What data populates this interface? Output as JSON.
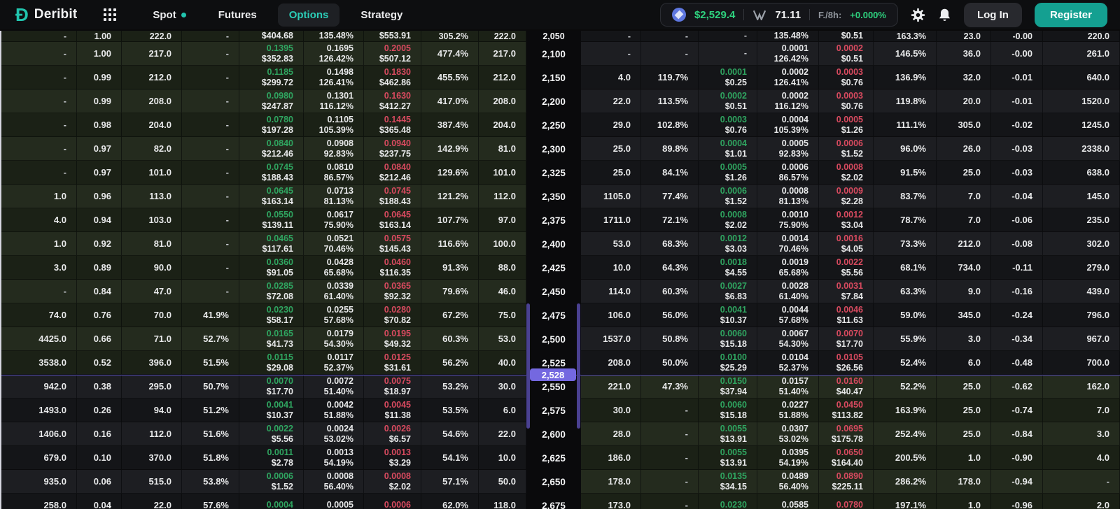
{
  "navbar": {
    "brand": "Deribit",
    "menu": [
      {
        "label": "Spot",
        "has_dot": true
      },
      {
        "label": "Futures"
      },
      {
        "label": "Options",
        "active": true
      },
      {
        "label": "Strategy"
      }
    ],
    "ticker": {
      "price": "$2,529.4",
      "dvol": "71.11",
      "funding_label": "F./8h:",
      "funding_value": "+0.000%"
    },
    "login_label": "Log In",
    "register_label": "Register"
  },
  "colors": {
    "accent_teal": "#21c4ae",
    "bid_green": "#2fa560",
    "ask_red": "#d84a5f",
    "price_green": "#2ed37f",
    "purple_marker": "#7468e0",
    "itm_row_green": "#242b1e"
  },
  "chain": {
    "current_price": "2,528",
    "rows": [
      {
        "strike": "2,050",
        "partial": "top",
        "itm": "call",
        "call": {
          "open": "-",
          "delta": "1.00",
          "bid_size": "222.0",
          "bid_iv": "-",
          "bid": [
            "",
            "$404.68"
          ],
          "mark": [
            "",
            "135.48%"
          ],
          "ask": [
            "",
            "$553.91"
          ],
          "ask_iv": "305.2%",
          "ask_size": "222.0"
        },
        "put": {
          "bid_size": "-",
          "bid_iv": "-",
          "bid": [
            "-",
            ""
          ],
          "mark": [
            "",
            "135.48%"
          ],
          "ask": [
            "",
            "$0.51"
          ],
          "ask_iv": "163.3%",
          "ask_size": "23.0",
          "delta": "-0.00",
          "open": "220.0"
        }
      },
      {
        "strike": "2,100",
        "itm": "call",
        "call": {
          "open": "-",
          "delta": "1.00",
          "bid_size": "217.0",
          "bid_iv": "-",
          "bid": [
            "0.1395",
            "$352.83"
          ],
          "mark": [
            "0.1695",
            "126.42%"
          ],
          "ask": [
            "0.2005",
            "$507.12"
          ],
          "ask_iv": "477.4%",
          "ask_size": "217.0"
        },
        "put": {
          "bid_size": "-",
          "bid_iv": "-",
          "bid": [
            "-",
            ""
          ],
          "mark": [
            "0.0001",
            "126.42%"
          ],
          "ask": [
            "0.0002",
            "$0.51"
          ],
          "ask_iv": "146.5%",
          "ask_size": "36.0",
          "delta": "-0.00",
          "open": "261.0"
        }
      },
      {
        "strike": "2,150",
        "itm": "call",
        "call": {
          "open": "-",
          "delta": "0.99",
          "bid_size": "212.0",
          "bid_iv": "-",
          "bid": [
            "0.1185",
            "$299.72"
          ],
          "mark": [
            "0.1498",
            "126.41%"
          ],
          "ask": [
            "0.1830",
            "$462.86"
          ],
          "ask_iv": "455.5%",
          "ask_size": "212.0"
        },
        "put": {
          "bid_size": "4.0",
          "bid_iv": "119.7%",
          "bid": [
            "0.0001",
            "$0.25"
          ],
          "mark": [
            "0.0002",
            "126.41%"
          ],
          "ask": [
            "0.0003",
            "$0.76"
          ],
          "ask_iv": "136.9%",
          "ask_size": "32.0",
          "delta": "-0.01",
          "open": "640.0"
        }
      },
      {
        "strike": "2,200",
        "itm": "call",
        "call": {
          "open": "-",
          "delta": "0.99",
          "bid_size": "208.0",
          "bid_iv": "-",
          "bid": [
            "0.0980",
            "$247.87"
          ],
          "mark": [
            "0.1301",
            "116.12%"
          ],
          "ask": [
            "0.1630",
            "$412.27"
          ],
          "ask_iv": "417.0%",
          "ask_size": "208.0"
        },
        "put": {
          "bid_size": "22.0",
          "bid_iv": "113.5%",
          "bid": [
            "0.0002",
            "$0.51"
          ],
          "mark": [
            "0.0002",
            "116.12%"
          ],
          "ask": [
            "0.0003",
            "$0.76"
          ],
          "ask_iv": "119.8%",
          "ask_size": "20.0",
          "delta": "-0.01",
          "open": "1520.0"
        }
      },
      {
        "strike": "2,250",
        "itm": "call",
        "call": {
          "open": "-",
          "delta": "0.98",
          "bid_size": "204.0",
          "bid_iv": "-",
          "bid": [
            "0.0780",
            "$197.28"
          ],
          "mark": [
            "0.1105",
            "105.39%"
          ],
          "ask": [
            "0.1445",
            "$365.48"
          ],
          "ask_iv": "387.4%",
          "ask_size": "204.0"
        },
        "put": {
          "bid_size": "29.0",
          "bid_iv": "102.8%",
          "bid": [
            "0.0003",
            "$0.76"
          ],
          "mark": [
            "0.0004",
            "105.39%"
          ],
          "ask": [
            "0.0005",
            "$1.26"
          ],
          "ask_iv": "111.1%",
          "ask_size": "305.0",
          "delta": "-0.02",
          "open": "1245.0"
        }
      },
      {
        "strike": "2,300",
        "itm": "call",
        "call": {
          "open": "-",
          "delta": "0.97",
          "bid_size": "82.0",
          "bid_iv": "-",
          "bid": [
            "0.0840",
            "$212.46"
          ],
          "mark": [
            "0.0908",
            "92.83%"
          ],
          "ask": [
            "0.0940",
            "$237.75"
          ],
          "ask_iv": "142.9%",
          "ask_size": "81.0"
        },
        "put": {
          "bid_size": "25.0",
          "bid_iv": "89.8%",
          "bid": [
            "0.0004",
            "$1.01"
          ],
          "mark": [
            "0.0005",
            "92.83%"
          ],
          "ask": [
            "0.0006",
            "$1.52"
          ],
          "ask_iv": "96.0%",
          "ask_size": "26.0",
          "delta": "-0.03",
          "open": "2338.0"
        }
      },
      {
        "strike": "2,325",
        "itm": "call",
        "call": {
          "open": "-",
          "delta": "0.97",
          "bid_size": "101.0",
          "bid_iv": "-",
          "bid": [
            "0.0745",
            "$188.43"
          ],
          "mark": [
            "0.0810",
            "86.57%"
          ],
          "ask": [
            "0.0840",
            "$212.46"
          ],
          "ask_iv": "129.6%",
          "ask_size": "101.0"
        },
        "put": {
          "bid_size": "25.0",
          "bid_iv": "84.1%",
          "bid": [
            "0.0005",
            "$1.26"
          ],
          "mark": [
            "0.0006",
            "86.57%"
          ],
          "ask": [
            "0.0008",
            "$2.02"
          ],
          "ask_iv": "91.5%",
          "ask_size": "25.0",
          "delta": "-0.03",
          "open": "638.0"
        }
      },
      {
        "strike": "2,350",
        "itm": "call",
        "call": {
          "open": "1.0",
          "delta": "0.96",
          "bid_size": "113.0",
          "bid_iv": "-",
          "bid": [
            "0.0645",
            "$163.14"
          ],
          "mark": [
            "0.0713",
            "81.13%"
          ],
          "ask": [
            "0.0745",
            "$188.43"
          ],
          "ask_iv": "121.2%",
          "ask_size": "112.0"
        },
        "put": {
          "bid_size": "1105.0",
          "bid_iv": "77.4%",
          "bid": [
            "0.0006",
            "$1.52"
          ],
          "mark": [
            "0.0008",
            "81.13%"
          ],
          "ask": [
            "0.0009",
            "$2.28"
          ],
          "ask_iv": "83.7%",
          "ask_size": "7.0",
          "delta": "-0.04",
          "open": "145.0"
        }
      },
      {
        "strike": "2,375",
        "itm": "call",
        "call": {
          "open": "4.0",
          "delta": "0.94",
          "bid_size": "103.0",
          "bid_iv": "-",
          "bid": [
            "0.0550",
            "$139.11"
          ],
          "mark": [
            "0.0617",
            "75.90%"
          ],
          "ask": [
            "0.0645",
            "$163.14"
          ],
          "ask_iv": "107.7%",
          "ask_size": "97.0"
        },
        "put": {
          "bid_size": "1711.0",
          "bid_iv": "72.1%",
          "bid": [
            "0.0008",
            "$2.02"
          ],
          "mark": [
            "0.0010",
            "75.90%"
          ],
          "ask": [
            "0.0012",
            "$3.04"
          ],
          "ask_iv": "78.7%",
          "ask_size": "7.0",
          "delta": "-0.06",
          "open": "235.0"
        }
      },
      {
        "strike": "2,400",
        "itm": "call",
        "call": {
          "open": "1.0",
          "delta": "0.92",
          "bid_size": "81.0",
          "bid_iv": "-",
          "bid": [
            "0.0465",
            "$117.61"
          ],
          "mark": [
            "0.0521",
            "70.46%"
          ],
          "ask": [
            "0.0575",
            "$145.43"
          ],
          "ask_iv": "116.6%",
          "ask_size": "100.0"
        },
        "put": {
          "bid_size": "53.0",
          "bid_iv": "68.3%",
          "bid": [
            "0.0012",
            "$3.03"
          ],
          "mark": [
            "0.0014",
            "70.46%"
          ],
          "ask": [
            "0.0016",
            "$4.05"
          ],
          "ask_iv": "73.3%",
          "ask_size": "212.0",
          "delta": "-0.08",
          "open": "302.0"
        }
      },
      {
        "strike": "2,425",
        "itm": "call",
        "call": {
          "open": "3.0",
          "delta": "0.89",
          "bid_size": "90.0",
          "bid_iv": "-",
          "bid": [
            "0.0360",
            "$91.05"
          ],
          "mark": [
            "0.0428",
            "65.68%"
          ],
          "ask": [
            "0.0460",
            "$116.35"
          ],
          "ask_iv": "91.3%",
          "ask_size": "88.0"
        },
        "put": {
          "bid_size": "10.0",
          "bid_iv": "64.3%",
          "bid": [
            "0.0018",
            "$4.55"
          ],
          "mark": [
            "0.0019",
            "65.68%"
          ],
          "ask": [
            "0.0022",
            "$5.56"
          ],
          "ask_iv": "68.1%",
          "ask_size": "734.0",
          "delta": "-0.11",
          "open": "279.0"
        }
      },
      {
        "strike": "2,450",
        "itm": "call",
        "call": {
          "open": "-",
          "delta": "0.84",
          "bid_size": "47.0",
          "bid_iv": "-",
          "bid": [
            "0.0285",
            "$72.08"
          ],
          "mark": [
            "0.0339",
            "61.40%"
          ],
          "ask": [
            "0.0365",
            "$92.32"
          ],
          "ask_iv": "79.6%",
          "ask_size": "46.0"
        },
        "put": {
          "bid_size": "114.0",
          "bid_iv": "60.3%",
          "bid": [
            "0.0027",
            "$6.83"
          ],
          "mark": [
            "0.0028",
            "61.40%"
          ],
          "ask": [
            "0.0031",
            "$7.84"
          ],
          "ask_iv": "63.3%",
          "ask_size": "9.0",
          "delta": "-0.16",
          "open": "439.0"
        }
      },
      {
        "strike": "2,475",
        "itm": "call",
        "call": {
          "open": "74.0",
          "delta": "0.76",
          "bid_size": "70.0",
          "bid_iv": "41.9%",
          "bid": [
            "0.0230",
            "$58.17"
          ],
          "mark": [
            "0.0255",
            "57.68%"
          ],
          "ask": [
            "0.0280",
            "$70.82"
          ],
          "ask_iv": "67.2%",
          "ask_size": "75.0"
        },
        "put": {
          "bid_size": "106.0",
          "bid_iv": "56.0%",
          "bid": [
            "0.0041",
            "$10.37"
          ],
          "mark": [
            "0.0044",
            "57.68%"
          ],
          "ask": [
            "0.0046",
            "$11.63"
          ],
          "ask_iv": "59.0%",
          "ask_size": "345.0",
          "delta": "-0.24",
          "open": "796.0"
        }
      },
      {
        "strike": "2,500",
        "itm": "call",
        "call": {
          "open": "4425.0",
          "delta": "0.66",
          "bid_size": "71.0",
          "bid_iv": "52.7%",
          "bid": [
            "0.0165",
            "$41.73"
          ],
          "mark": [
            "0.0179",
            "54.30%"
          ],
          "ask": [
            "0.0195",
            "$49.32"
          ],
          "ask_iv": "60.3%",
          "ask_size": "53.0"
        },
        "put": {
          "bid_size": "1537.0",
          "bid_iv": "50.8%",
          "bid": [
            "0.0060",
            "$15.18"
          ],
          "mark": [
            "0.0067",
            "54.30%"
          ],
          "ask": [
            "0.0070",
            "$17.70"
          ],
          "ask_iv": "55.9%",
          "ask_size": "3.0",
          "delta": "-0.34",
          "open": "967.0"
        }
      },
      {
        "strike": "2,525",
        "itm": "call",
        "call": {
          "open": "3538.0",
          "delta": "0.52",
          "bid_size": "396.0",
          "bid_iv": "51.5%",
          "bid": [
            "0.0115",
            "$29.08"
          ],
          "mark": [
            "0.0117",
            "52.37%"
          ],
          "ask": [
            "0.0125",
            "$31.61"
          ],
          "ask_iv": "56.2%",
          "ask_size": "40.0"
        },
        "put": {
          "bid_size": "208.0",
          "bid_iv": "50.0%",
          "bid": [
            "0.0100",
            "$25.29"
          ],
          "mark": [
            "0.0104",
            "52.37%"
          ],
          "ask": [
            "0.0105",
            "$26.56"
          ],
          "ask_iv": "52.4%",
          "ask_size": "6.0",
          "delta": "-0.48",
          "open": "700.0"
        }
      },
      {
        "strike": "2,550",
        "itm": "put",
        "call": {
          "open": "942.0",
          "delta": "0.38",
          "bid_size": "295.0",
          "bid_iv": "50.7%",
          "bid": [
            "0.0070",
            "$17.70"
          ],
          "mark": [
            "0.0072",
            "51.40%"
          ],
          "ask": [
            "0.0075",
            "$18.97"
          ],
          "ask_iv": "53.2%",
          "ask_size": "30.0"
        },
        "put": {
          "bid_size": "221.0",
          "bid_iv": "47.3%",
          "bid": [
            "0.0150",
            "$37.94"
          ],
          "mark": [
            "0.0157",
            "51.40%"
          ],
          "ask": [
            "0.0160",
            "$40.47"
          ],
          "ask_iv": "52.2%",
          "ask_size": "25.0",
          "delta": "-0.62",
          "open": "162.0"
        }
      },
      {
        "strike": "2,575",
        "itm": "put",
        "call": {
          "open": "1493.0",
          "delta": "0.26",
          "bid_size": "94.0",
          "bid_iv": "51.2%",
          "bid": [
            "0.0041",
            "$10.37"
          ],
          "mark": [
            "0.0042",
            "51.88%"
          ],
          "ask": [
            "0.0045",
            "$11.38"
          ],
          "ask_iv": "53.5%",
          "ask_size": "6.0"
        },
        "put": {
          "bid_size": "30.0",
          "bid_iv": "-",
          "bid": [
            "0.0060",
            "$15.18"
          ],
          "mark": [
            "0.0227",
            "51.88%"
          ],
          "ask": [
            "0.0450",
            "$113.82"
          ],
          "ask_iv": "163.9%",
          "ask_size": "25.0",
          "delta": "-0.74",
          "open": "7.0"
        }
      },
      {
        "strike": "2,600",
        "itm": "put",
        "call": {
          "open": "1406.0",
          "delta": "0.16",
          "bid_size": "112.0",
          "bid_iv": "51.6%",
          "bid": [
            "0.0022",
            "$5.56"
          ],
          "mark": [
            "0.0024",
            "53.02%"
          ],
          "ask": [
            "0.0026",
            "$6.57"
          ],
          "ask_iv": "54.6%",
          "ask_size": "22.0"
        },
        "put": {
          "bid_size": "28.0",
          "bid_iv": "-",
          "bid": [
            "0.0055",
            "$13.91"
          ],
          "mark": [
            "0.0307",
            "53.02%"
          ],
          "ask": [
            "0.0695",
            "$175.78"
          ],
          "ask_iv": "252.4%",
          "ask_size": "25.0",
          "delta": "-0.84",
          "open": "3.0"
        }
      },
      {
        "strike": "2,625",
        "itm": "put",
        "call": {
          "open": "679.0",
          "delta": "0.10",
          "bid_size": "370.0",
          "bid_iv": "51.8%",
          "bid": [
            "0.0011",
            "$2.78"
          ],
          "mark": [
            "0.0013",
            "54.19%"
          ],
          "ask": [
            "0.0013",
            "$3.29"
          ],
          "ask_iv": "54.1%",
          "ask_size": "10.0"
        },
        "put": {
          "bid_size": "186.0",
          "bid_iv": "-",
          "bid": [
            "0.0055",
            "$13.91"
          ],
          "mark": [
            "0.0395",
            "54.19%"
          ],
          "ask": [
            "0.0650",
            "$164.40"
          ],
          "ask_iv": "200.5%",
          "ask_size": "1.0",
          "delta": "-0.90",
          "open": "4.0"
        }
      },
      {
        "strike": "2,650",
        "itm": "put",
        "call": {
          "open": "935.0",
          "delta": "0.06",
          "bid_size": "515.0",
          "bid_iv": "53.8%",
          "bid": [
            "0.0006",
            "$1.52"
          ],
          "mark": [
            "0.0008",
            "56.40%"
          ],
          "ask": [
            "0.0008",
            "$2.02"
          ],
          "ask_iv": "57.1%",
          "ask_size": "50.0"
        },
        "put": {
          "bid_size": "178.0",
          "bid_iv": "-",
          "bid": [
            "0.0135",
            "$34.15"
          ],
          "mark": [
            "0.0489",
            "56.40%"
          ],
          "ask": [
            "0.0890",
            "$225.11"
          ],
          "ask_iv": "286.2%",
          "ask_size": "178.0",
          "delta": "-0.94",
          "open": "-"
        }
      },
      {
        "strike": "2,675",
        "partial": "bottom",
        "itm": "put",
        "call": {
          "open": "258.0",
          "delta": "0.04",
          "bid_size": "22.0",
          "bid_iv": "57.6%",
          "bid": [
            "0.0004",
            ""
          ],
          "mark": [
            "0.0005",
            ""
          ],
          "ask": [
            "0.0006",
            ""
          ],
          "ask_iv": "62.0%",
          "ask_size": "118.0"
        },
        "put": {
          "bid_size": "173.0",
          "bid_iv": "-",
          "bid": [
            "0.0230",
            ""
          ],
          "mark": [
            "0.0585",
            ""
          ],
          "ask": [
            "0.0780",
            ""
          ],
          "ask_iv": "197.1%",
          "ask_size": "1.0",
          "delta": "-0.96",
          "open": "2.0"
        }
      }
    ]
  }
}
